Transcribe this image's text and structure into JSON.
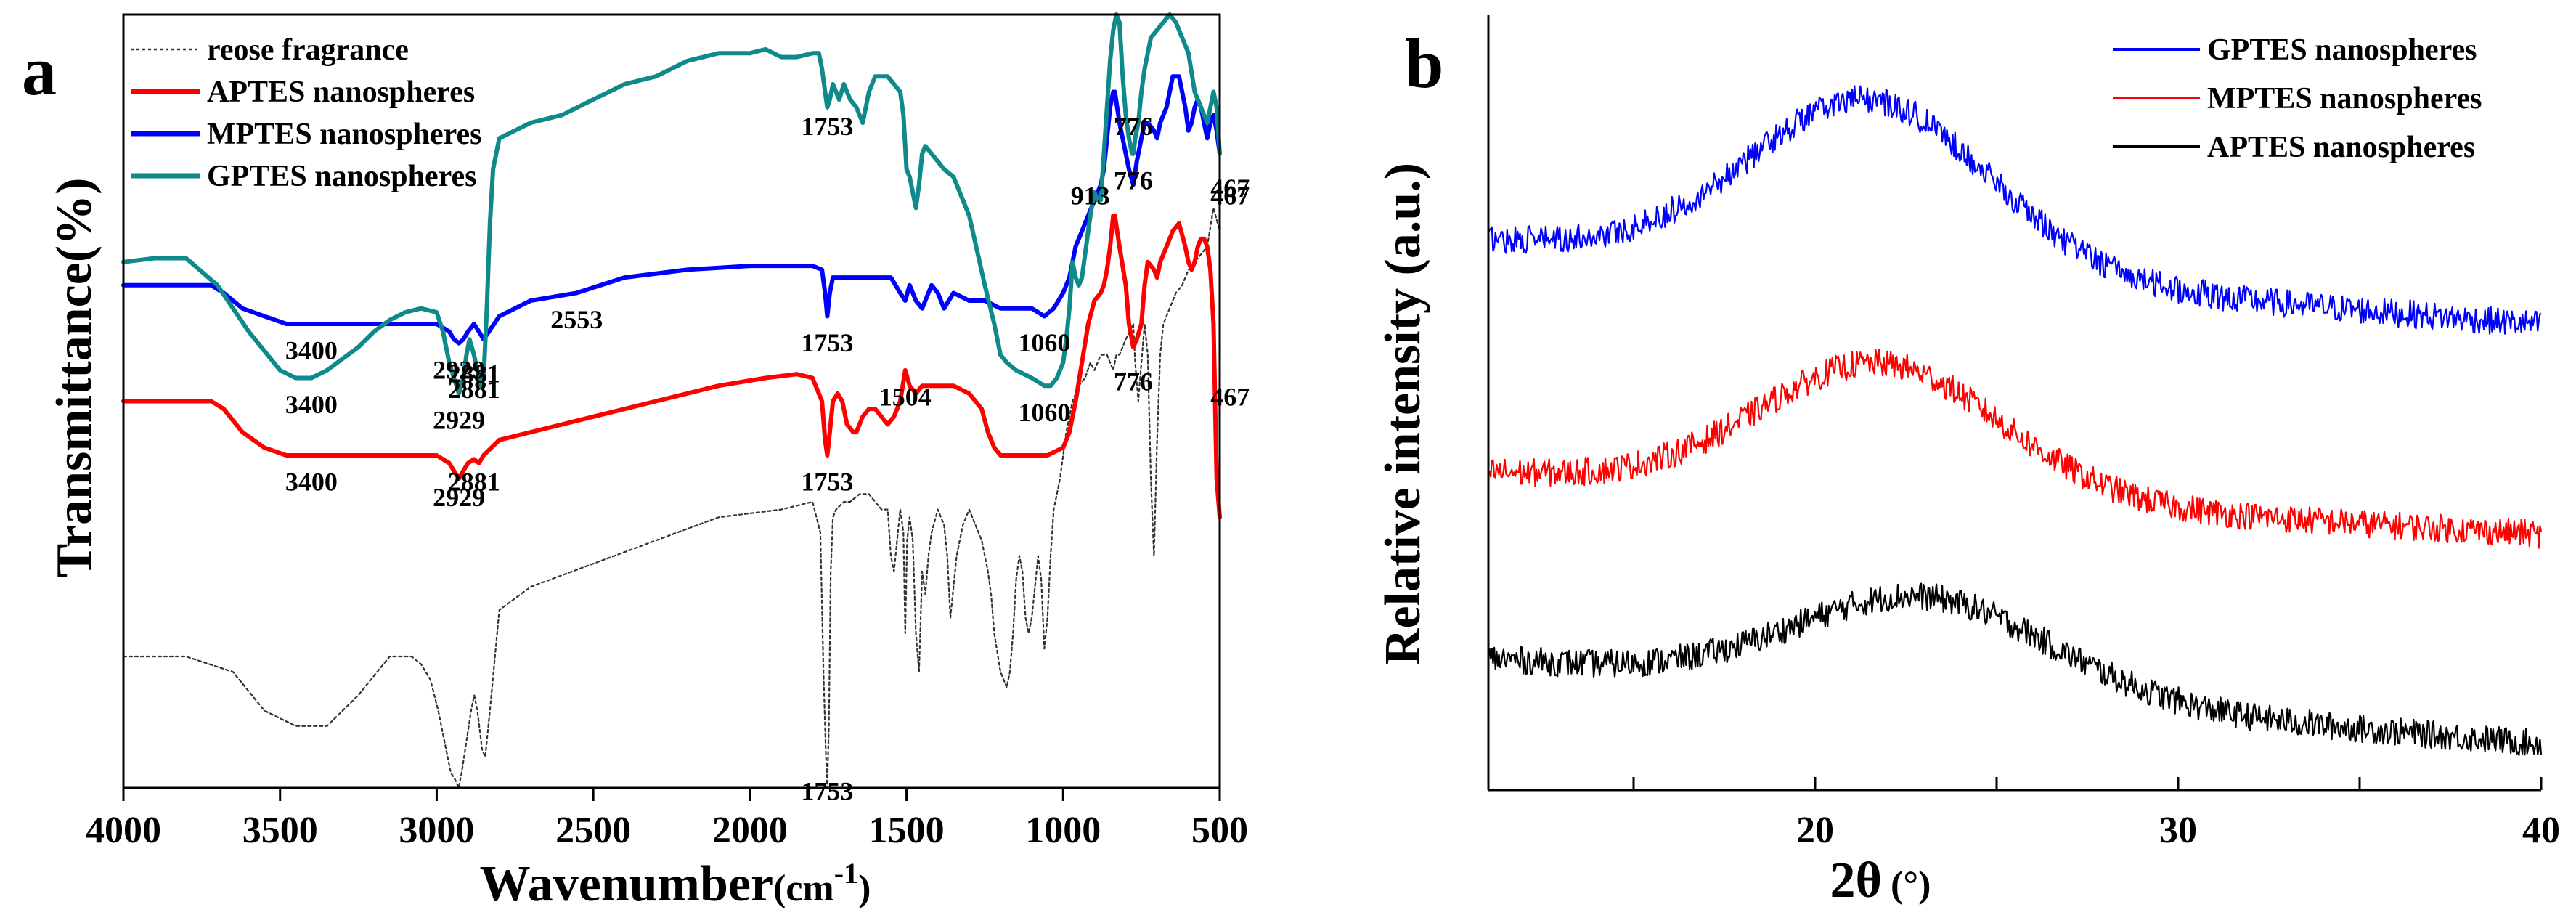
{
  "figure": {
    "panel_a_label": "a",
    "panel_b_label": "b"
  },
  "chart_data": [
    {
      "panel": "a",
      "type": "line",
      "title": "",
      "xlabel": "Wavenumber",
      "xlabel_unit": "(cm",
      "xlabel_sup": "-1",
      "xlabel_close": ")",
      "ylabel": "Transmittance(%)",
      "xlim": [
        4000,
        500
      ],
      "xticks": [
        4000,
        3500,
        3000,
        2500,
        2000,
        1500,
        1000,
        500
      ],
      "ylim": [
        0,
        100
      ],
      "y_ticks_shown": false,
      "legend_position": "top-left",
      "series": [
        {
          "name": "reose fragrance",
          "color": "#333333",
          "style": "dotted",
          "x": [
            4000,
            3800,
            3650,
            3550,
            3450,
            3400,
            3350,
            3250,
            3150,
            3080,
            3050,
            3020,
            2995,
            2975,
            2955,
            2940,
            2930,
            2920,
            2905,
            2890,
            2880,
            2870,
            2855,
            2845,
            2830,
            2800,
            2700,
            2500,
            2300,
            2100,
            1900,
            1800,
            1775,
            1765,
            1758,
            1753,
            1748,
            1742,
            1735,
            1725,
            1700,
            1680,
            1650,
            1620,
            1600,
            1580,
            1560,
            1550,
            1540,
            1520,
            1510,
            1504,
            1498,
            1490,
            1480,
            1470,
            1460,
            1450,
            1440,
            1430,
            1420,
            1400,
            1380,
            1370,
            1360,
            1340,
            1320,
            1300,
            1280,
            1260,
            1240,
            1230,
            1220,
            1200,
            1180,
            1170,
            1160,
            1150,
            1140,
            1130,
            1120,
            1110,
            1100,
            1090,
            1080,
            1070,
            1060,
            1050,
            1040,
            1030,
            1020,
            1010,
            1000,
            990,
            970,
            950,
            930,
            913,
            900,
            880,
            860,
            850,
            840,
            830,
            820,
            800,
            776,
            770,
            760,
            750,
            740,
            730,
            720,
            710,
            700,
            690,
            680,
            660,
            640,
            620,
            600,
            580,
            560,
            540,
            520,
            500
          ],
          "y": [
            17,
            17,
            15,
            10,
            8,
            8,
            8,
            12,
            17,
            17,
            16,
            14,
            10,
            6,
            2,
            1,
            0,
            2,
            6,
            10,
            12,
            10,
            5,
            4,
            10,
            23,
            26,
            29,
            32,
            35,
            36,
            37,
            33,
            15,
            5,
            0,
            8,
            28,
            35,
            36,
            37,
            37,
            38,
            38,
            37,
            36,
            36,
            30,
            28,
            36,
            33,
            20,
            32,
            35,
            32,
            20,
            15,
            28,
            25,
            30,
            33,
            36,
            34,
            30,
            22,
            30,
            34,
            36,
            34,
            32,
            28,
            25,
            20,
            15,
            13,
            15,
            20,
            27,
            30,
            28,
            22,
            20,
            22,
            26,
            30,
            27,
            18,
            22,
            30,
            36,
            38,
            40,
            43,
            46,
            50,
            52,
            53,
            55,
            54,
            56,
            56,
            55,
            54,
            56,
            56,
            58,
            60,
            55,
            50,
            55,
            60,
            56,
            40,
            30,
            45,
            56,
            60,
            62,
            64,
            65,
            67,
            68,
            69,
            70,
            75,
            72
          ]
        },
        {
          "name": "APTES nanospheres",
          "color": "#ff0000",
          "style": "solid",
          "x": [
            4000,
            3900,
            3800,
            3720,
            3680,
            3620,
            3550,
            3480,
            3400,
            3320,
            3250,
            3150,
            3050,
            3000,
            2960,
            2945,
            2929,
            2915,
            2900,
            2881,
            2865,
            2850,
            2800,
            2700,
            2500,
            2300,
            2100,
            1950,
            1850,
            1800,
            1770,
            1760,
            1753,
            1745,
            1735,
            1720,
            1705,
            1690,
            1670,
            1660,
            1640,
            1620,
            1600,
            1580,
            1560,
            1540,
            1520,
            1504,
            1490,
            1470,
            1450,
            1400,
            1350,
            1300,
            1280,
            1260,
            1240,
            1220,
            1200,
            1180,
            1150,
            1100,
            1050,
            1000,
            980,
            960,
            940,
            920,
            900,
            880,
            870,
            860,
            850,
            840,
            835,
            820,
            800,
            790,
            776,
            765,
            750,
            740,
            730,
            710,
            700,
            690,
            670,
            650,
            630,
            610,
            600,
            590,
            580,
            570,
            560,
            550,
            540,
            530,
            520,
            510,
            500
          ],
          "y": [
            50,
            50,
            50,
            50,
            49,
            46,
            44,
            43,
            43,
            43,
            43,
            43,
            43,
            43,
            42,
            41,
            40,
            41,
            42,
            42.5,
            42,
            43,
            45,
            46,
            48,
            50,
            52,
            53,
            53.5,
            53,
            50,
            45,
            43,
            46,
            50,
            51,
            50,
            47,
            46,
            46,
            48,
            49,
            49,
            48,
            47,
            48,
            50,
            54,
            52,
            51,
            52,
            52,
            52,
            51,
            50,
            49,
            46,
            44,
            43,
            43,
            43,
            43,
            43,
            44,
            46,
            50,
            55,
            60,
            63,
            64,
            65,
            67,
            70,
            74,
            74,
            70,
            65,
            60,
            57,
            58,
            60,
            65,
            68,
            67,
            66,
            68,
            70,
            72,
            73,
            70,
            68,
            67,
            68,
            70,
            71,
            71,
            70,
            67,
            60,
            40,
            35
          ]
        },
        {
          "name": "MPTES nanospheres",
          "color": "#0000ff",
          "style": "solid",
          "x": [
            4000,
            3900,
            3800,
            3720,
            3680,
            3620,
            3550,
            3480,
            3400,
            3320,
            3250,
            3150,
            3050,
            3000,
            2960,
            2945,
            2929,
            2915,
            2900,
            2881,
            2865,
            2850,
            2800,
            2700,
            2553,
            2400,
            2200,
            2000,
            1850,
            1800,
            1770,
            1760,
            1753,
            1745,
            1735,
            1700,
            1650,
            1600,
            1550,
            1520,
            1504,
            1490,
            1470,
            1450,
            1420,
            1400,
            1380,
            1350,
            1300,
            1250,
            1200,
            1150,
            1100,
            1060,
            1030,
            1000,
            980,
            960,
            940,
            920,
            900,
            880,
            870,
            860,
            850,
            840,
            835,
            820,
            800,
            790,
            776,
            765,
            750,
            740,
            730,
            710,
            700,
            690,
            670,
            650,
            630,
            610,
            600,
            590,
            580,
            570,
            560,
            550,
            540,
            530,
            520,
            510,
            500
          ],
          "y": [
            65,
            65,
            65,
            65,
            64,
            62,
            61,
            60,
            60,
            60,
            60,
            60,
            60,
            60,
            59,
            58,
            57.5,
            58,
            59,
            60,
            59,
            58,
            61,
            63,
            64,
            66,
            67,
            67.5,
            67.5,
            67.5,
            67,
            64,
            61,
            64,
            66,
            66,
            66,
            66,
            66,
            64,
            63,
            65,
            63,
            62,
            65,
            64,
            62,
            64,
            63,
            63,
            62,
            62,
            62,
            61,
            62,
            64,
            66,
            70,
            72,
            74,
            76,
            78,
            80,
            84,
            88,
            90,
            90,
            86,
            82,
            80,
            78,
            81,
            84,
            86,
            86,
            85,
            84,
            86,
            88,
            92,
            92,
            88,
            85,
            86,
            88,
            89,
            88,
            86,
            84,
            86,
            87,
            85,
            82
          ]
        },
        {
          "name": "GPTES nanospheres",
          "color": "#0f8a8a",
          "style": "solid",
          "x": [
            4000,
            3900,
            3800,
            3700,
            3600,
            3500,
            3450,
            3400,
            3350,
            3300,
            3250,
            3200,
            3150,
            3100,
            3050,
            3000,
            2980,
            2960,
            2945,
            2929,
            2915,
            2905,
            2895,
            2881,
            2870,
            2860,
            2850,
            2840,
            2830,
            2820,
            2800,
            2700,
            2600,
            2500,
            2400,
            2300,
            2200,
            2100,
            2000,
            1950,
            1900,
            1850,
            1800,
            1780,
            1770,
            1760,
            1753,
            1745,
            1735,
            1725,
            1715,
            1700,
            1680,
            1660,
            1650,
            1640,
            1630,
            1620,
            1610,
            1600,
            1580,
            1560,
            1540,
            1520,
            1510,
            1500,
            1490,
            1480,
            1470,
            1460,
            1450,
            1440,
            1420,
            1400,
            1380,
            1350,
            1300,
            1250,
            1220,
            1200,
            1180,
            1150,
            1100,
            1060,
            1040,
            1020,
            1000,
            990,
            980,
            975,
            970,
            960,
            950,
            940,
            930,
            920,
            913,
            905,
            900,
            890,
            880,
            870,
            860,
            850,
            840,
            830,
            820,
            810,
            800,
            790,
            780,
            776,
            770,
            760,
            750,
            740,
            730,
            720,
            700,
            680,
            660,
            640,
            620,
            600,
            580,
            560,
            540,
            530,
            520,
            510,
            500
          ],
          "y": [
            68,
            68.5,
            68.5,
            65,
            59,
            54,
            53,
            53,
            54,
            55.5,
            57,
            59,
            60.5,
            61.5,
            62,
            61.5,
            59,
            55,
            53,
            51,
            53,
            56,
            58,
            56,
            54,
            52,
            53,
            62,
            73,
            80,
            84,
            86,
            87,
            89,
            91,
            92,
            94,
            95,
            95,
            95.5,
            94.5,
            94.5,
            95,
            95,
            93,
            90,
            88,
            89,
            91,
            90,
            89,
            91,
            89,
            88,
            87,
            86,
            88,
            90,
            91,
            92,
            92,
            92,
            91,
            90,
            87,
            80,
            79,
            77,
            75,
            78,
            82,
            83,
            82,
            81,
            80,
            79,
            74,
            65,
            60,
            56,
            55,
            54,
            53,
            52,
            52,
            53,
            55,
            58,
            62,
            65,
            68,
            66,
            65,
            66,
            69,
            72,
            74,
            76,
            77,
            76,
            76,
            82,
            88,
            94,
            98,
            100,
            99,
            92,
            87,
            84,
            82,
            82,
            84,
            86,
            90,
            93,
            95,
            97,
            98,
            99,
            100,
            99,
            97,
            95,
            90,
            88,
            86,
            88,
            90,
            88,
            82
          ]
        }
      ],
      "annotations": [
        {
          "text": "3400",
          "x": 3400,
          "y": 52
        },
        {
          "text": "2929",
          "x": 2929,
          "y": 50
        },
        {
          "text": "2881",
          "x": 2881,
          "y": 54
        },
        {
          "text": "1753",
          "x": 1753,
          "y": 88
        },
        {
          "text": "913",
          "x": 913,
          "y": 79
        },
        {
          "text": "1060",
          "x": 1060,
          "y": 51
        },
        {
          "text": "776",
          "x": 776,
          "y": 81
        },
        {
          "text": "467",
          "x": 467,
          "y": 79
        },
        {
          "text": "776",
          "x": 776,
          "y": 88
        },
        {
          "text": "467",
          "x": 467,
          "y": 80
        },
        {
          "text": "3400",
          "x": 3400,
          "y": 59
        },
        {
          "text": "2929",
          "x": 2929,
          "y": 56.5
        },
        {
          "text": "2881",
          "x": 2881,
          "y": 56
        },
        {
          "text": "2553",
          "x": 2553,
          "y": 63
        },
        {
          "text": "1753",
          "x": 1753,
          "y": 60
        },
        {
          "text": "1060",
          "x": 1060,
          "y": 60
        },
        {
          "text": "1504",
          "x": 1504,
          "y": 53
        },
        {
          "text": "3400",
          "x": 3400,
          "y": 42
        },
        {
          "text": "2929",
          "x": 2929,
          "y": 40
        },
        {
          "text": "2881",
          "x": 2881,
          "y": 42
        },
        {
          "text": "1753",
          "x": 1753,
          "y": 42
        },
        {
          "text": "776",
          "x": 776,
          "y": 55
        },
        {
          "text": "467",
          "x": 467,
          "y": 53
        },
        {
          "text": "1753",
          "x": 1753,
          "y": 2
        }
      ]
    },
    {
      "panel": "b",
      "type": "line",
      "title": "",
      "xlabel": "2θ",
      "xlabel_unit": "(°)",
      "ylabel": "Relative intensity (a.u.)",
      "xlim": [
        11,
        40
      ],
      "xticks": [
        20,
        30,
        40
      ],
      "ylim": [
        0,
        100
      ],
      "y_ticks_shown": false,
      "legend_position": "top-right",
      "series": [
        {
          "name": "GPTES nanospheres",
          "color": "#0000ff",
          "base_start": 71,
          "base_end": 60,
          "peak_center": 21.5,
          "peak_width": 3.3,
          "peak_height": 22,
          "noise": 1.8
        },
        {
          "name": "MPTES nanospheres",
          "color": "#ff0000",
          "base_start": 41,
          "base_end": 33,
          "peak_center": 21.8,
          "peak_width": 3.3,
          "peak_height": 17,
          "noise": 1.8
        },
        {
          "name": "APTES nanospheres",
          "color": "#000000",
          "base_start": 17,
          "base_end": 6,
          "peak_center": 23,
          "peak_width": 3.5,
          "peak_height": 12.5,
          "noise": 1.8
        }
      ]
    }
  ]
}
